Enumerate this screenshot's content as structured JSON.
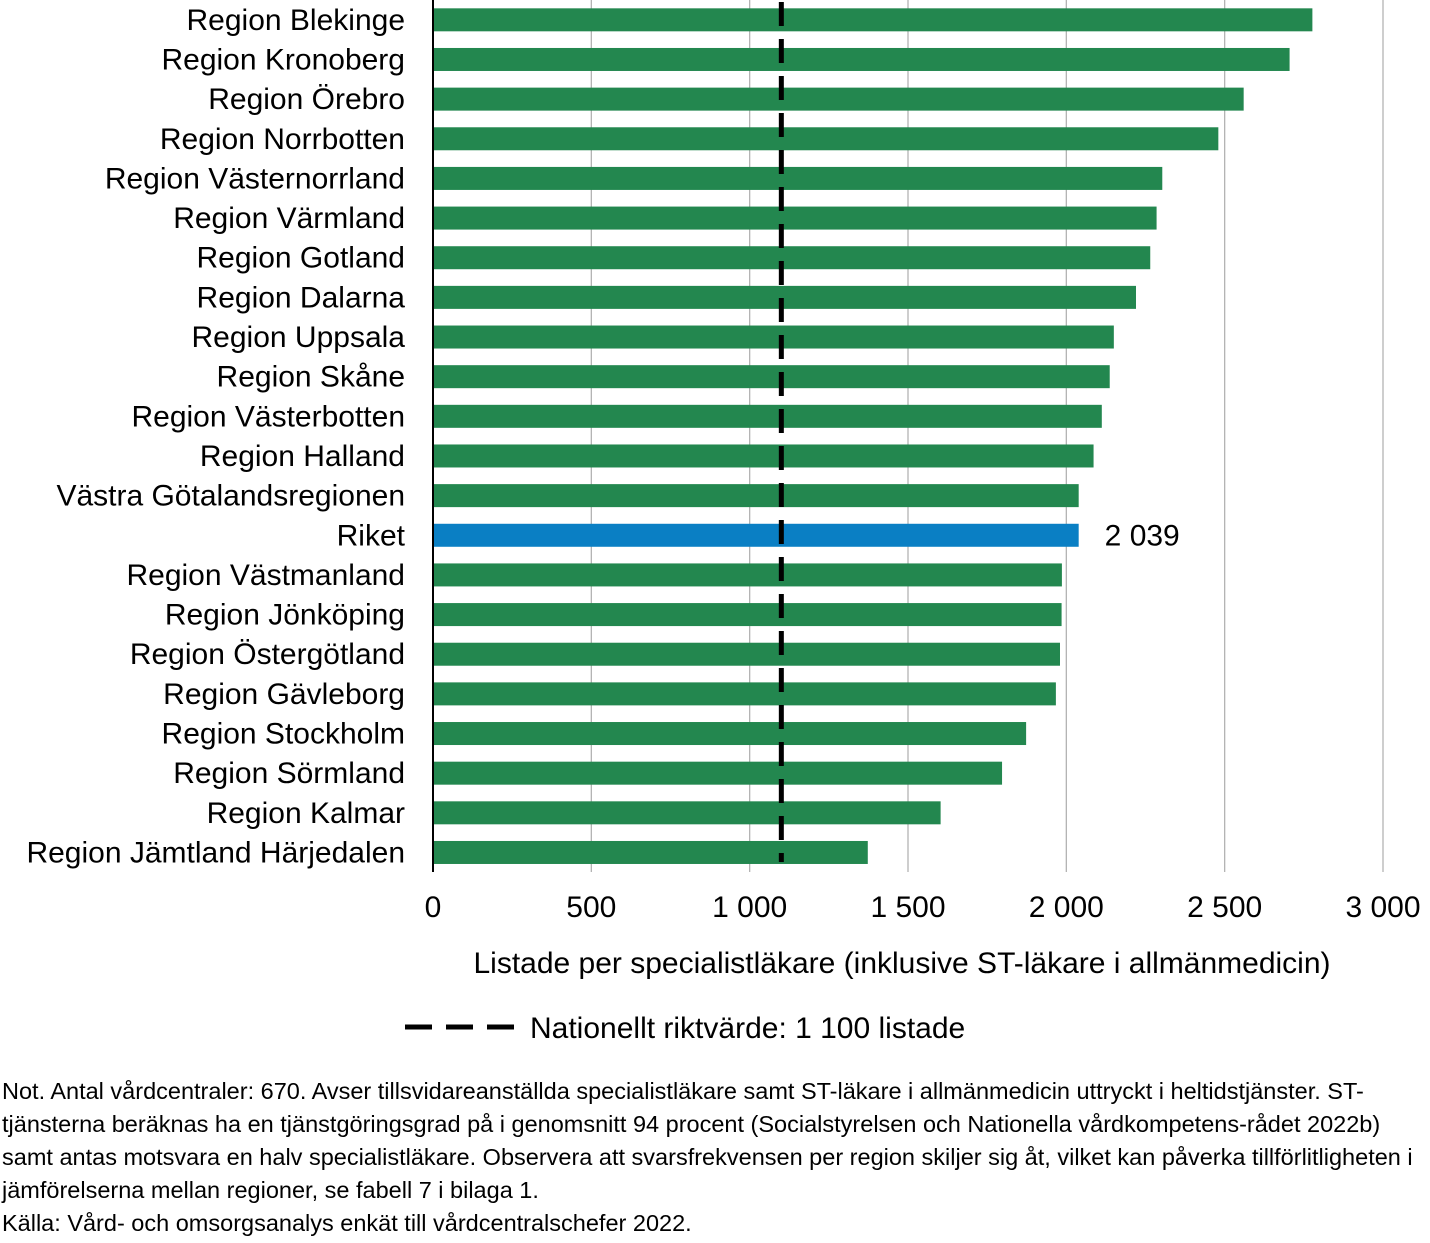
{
  "chart_data": {
    "type": "bar",
    "orientation": "horizontal",
    "categories": [
      "Region Blekinge",
      "Region Kronoberg",
      "Region Örebro",
      "Region Norrbotten",
      "Region Västernorrland",
      "Region Värmland",
      "Region Gotland",
      "Region Dalarna",
      "Region Uppsala",
      "Region Skåne",
      "Region Västerbotten",
      "Region Halland",
      "Västra Götalandsregionen",
      "Riket",
      "Region Västmanland",
      "Region Jönköping",
      "Region Östergötland",
      "Region Gävleborg",
      "Region Stockholm",
      "Region Sörmland",
      "Region Kalmar",
      "Region Jämtland Härjedalen"
    ],
    "values": [
      2777,
      2705,
      2560,
      2480,
      2303,
      2285,
      2265,
      2220,
      2150,
      2137,
      2112,
      2086,
      2039,
      2039,
      1986,
      1985,
      1980,
      1967,
      1873,
      1797,
      1603,
      1373
    ],
    "highlight": "Riket",
    "highlight_label": "2 039",
    "xlabel": "Listade per specialistläkare (inklusive ST-läkare i allmänmedicin)",
    "ylabel": "",
    "xlim": [
      0,
      3000
    ],
    "xticks": [
      0,
      500,
      1000,
      1500,
      2000,
      2500,
      3000
    ],
    "xtick_labels": [
      "0",
      "500",
      "1 000",
      "1 500",
      "2 000",
      "2 500",
      "3 000"
    ],
    "reference_line": {
      "value": 1100,
      "style": "dashed",
      "label": "Nationellt riktvärde: 1 100 listade"
    },
    "grid": "vertical",
    "legend_position": "bottom",
    "colors": {
      "bar": "#23874f",
      "highlight": "#0a7fc4",
      "grid": "#b3b3b3",
      "reference": "#000000"
    }
  },
  "note": {
    "text": "Not. Antal vårdcentraler: 670. Avser tillsvidareanställda specialistläkare samt ST-läkare i allmänmedicin uttryckt i heltidstjänster. ST-tjänsterna beräknas ha en tjänstgöringsgrad på i genomsnitt 94 procent (Socialstyrelsen och Nationella vårdkompetens-rådet 2022b) samt antas motsvara en halv specialistläkare. Observera att svarsfrekvensen per region skiljer sig åt, vilket kan påverka tillförlitligheten i jämförelserna mellan regioner, se fabell 7 i bilaga 1.",
    "source": "Källa: Vård- och omsorgsanalys enkät till vårdcentralschefer 2022."
  }
}
